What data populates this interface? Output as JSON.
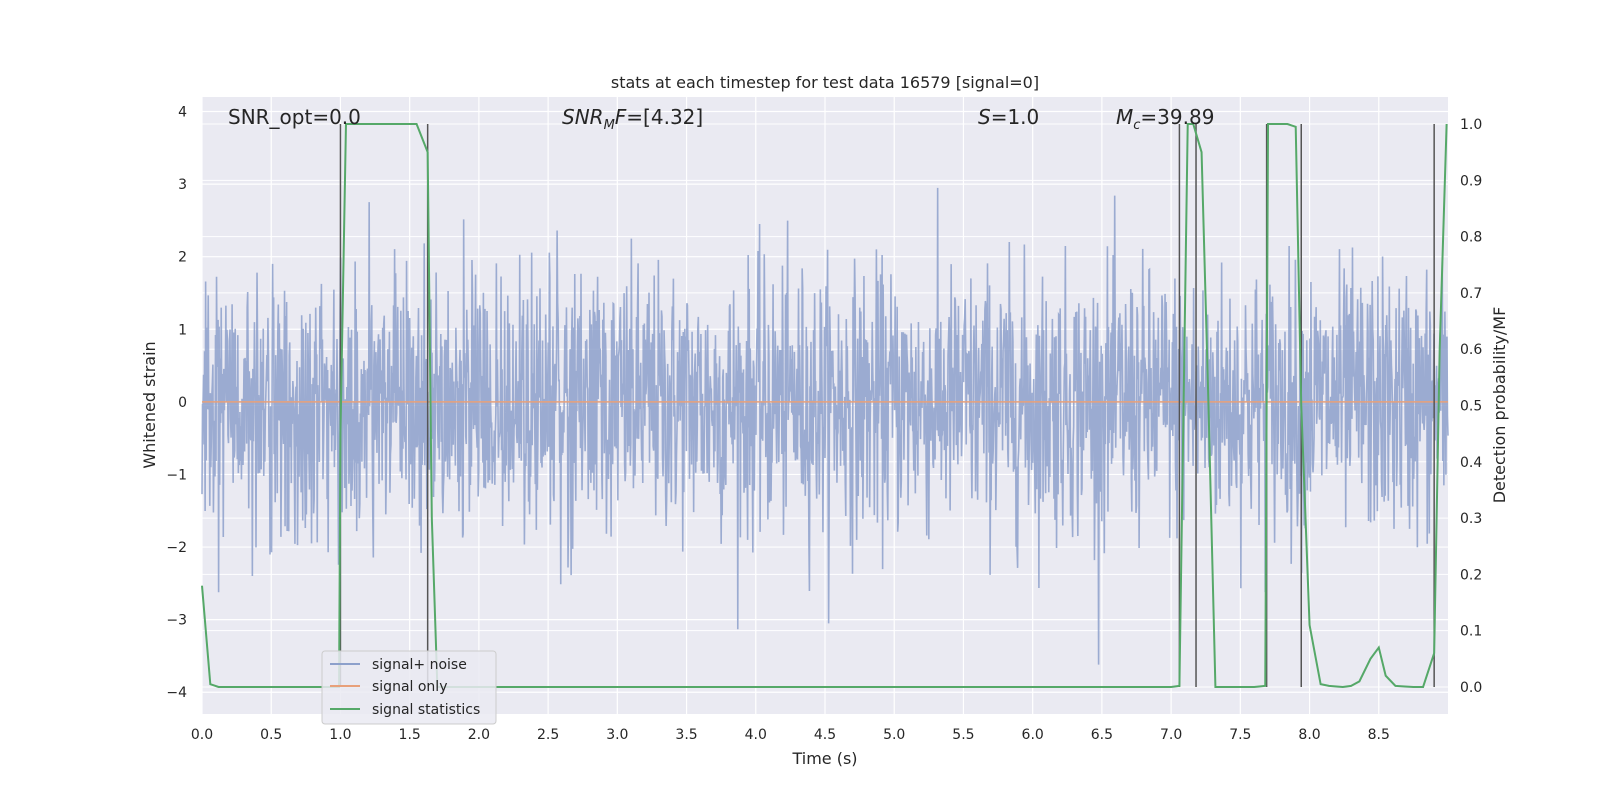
{
  "chart_data": {
    "type": "line",
    "title": "stats at each timestep for test data 16579 [signal=0]",
    "xlabel": "Time (s)",
    "ylabel": "Whitened strain",
    "y2label": "Detection probability/MF",
    "xlim": [
      0.0,
      9.0
    ],
    "ylim": [
      -4.3,
      4.2
    ],
    "y2lim": [
      -0.048,
      1.048
    ],
    "x_ticks": [
      "0.0",
      "0.5",
      "1.0",
      "1.5",
      "2.0",
      "2.5",
      "3.0",
      "3.5",
      "4.0",
      "4.5",
      "5.0",
      "5.5",
      "6.0",
      "6.5",
      "7.0",
      "7.5",
      "8.0",
      "8.5"
    ],
    "y_ticks": [
      "4",
      "3",
      "2",
      "1",
      "0",
      "−1",
      "−2",
      "−3",
      "−4"
    ],
    "y2_ticks": [
      "1.0",
      "0.9",
      "0.8",
      "0.7",
      "0.6",
      "0.5",
      "0.4",
      "0.3",
      "0.2",
      "0.1",
      "0.0"
    ],
    "grid": true,
    "legend_position": "lower-left",
    "annotations": {
      "snr_opt": "SNR_opt=0.0",
      "snr_mf": "=[4.32]",
      "s": "=1.0",
      "mc": "=39.89"
    },
    "series": [
      {
        "name": "signal+ noise",
        "color": "#8da0cb",
        "description_values": {
          "typical_range": [
            -2.0,
            2.5
          ],
          "extremes": [
            -4.0,
            3.8
          ]
        }
      },
      {
        "name": "signal only",
        "color": "#e8a07a",
        "values": [
          [
            0.0,
            0.0
          ],
          [
            9.0,
            0.0
          ]
        ]
      },
      {
        "name": "signal statistics",
        "color": "#55a868",
        "axis": "right",
        "x": [
          0.0,
          0.06,
          0.12,
          0.2,
          0.5,
          0.9,
          0.99,
          1.0,
          1.04,
          1.08,
          1.2,
          1.4,
          1.55,
          1.63,
          1.66,
          1.7,
          2.0,
          3.0,
          4.0,
          5.0,
          6.0,
          7.0,
          7.06,
          7.12,
          7.16,
          7.22,
          7.27,
          7.32,
          7.4,
          7.5,
          7.6,
          7.68,
          7.7,
          7.76,
          7.84,
          7.9,
          7.94,
          8.0,
          8.08,
          8.14,
          8.24,
          8.3,
          8.36,
          8.44,
          8.5,
          8.55,
          8.62,
          8.75,
          8.82,
          8.9,
          8.94,
          8.99
        ],
        "values": [
          0.18,
          0.005,
          0.0,
          0.0,
          0.0,
          0.0,
          0.0,
          0.45,
          1.0,
          1.0,
          1.0,
          1.0,
          1.0,
          0.95,
          0.3,
          0.0,
          0.0,
          0.0,
          0.0,
          0.0,
          0.0,
          0.0,
          0.002,
          1.0,
          1.0,
          0.95,
          0.5,
          0.0,
          0.0,
          0.0,
          0.0,
          0.002,
          1.0,
          1.0,
          1.0,
          0.995,
          0.5,
          0.11,
          0.005,
          0.002,
          0.0,
          0.002,
          0.01,
          0.05,
          0.07,
          0.02,
          0.002,
          0.0,
          0.0,
          0.06,
          0.6,
          1.0
        ]
      }
    ],
    "vertical_markers": [
      1.0,
      1.63,
      7.06,
      7.18,
      7.69,
      7.94,
      8.9
    ]
  }
}
